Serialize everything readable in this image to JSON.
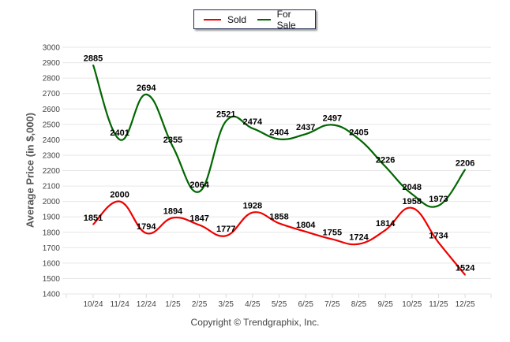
{
  "chart_data": {
    "type": "line",
    "title": "",
    "xlabel": "",
    "ylabel": "Average Price (in $,000)",
    "ylim": [
      1400,
      3000
    ],
    "yticks": [
      3000,
      2900,
      2800,
      2700,
      2600,
      2500,
      2400,
      2300,
      2200,
      2100,
      2000,
      1900,
      1800,
      1700,
      1600,
      1500,
      1400
    ],
    "grid": true,
    "legend_position": "top-center",
    "categories": [
      "10/24",
      "11/24",
      "12/24",
      "1/25",
      "2/25",
      "3/25",
      "4/25",
      "5/25",
      "6/25",
      "7/25",
      "8/25",
      "9/25",
      "10/25",
      "11/25",
      "12/25"
    ],
    "series": [
      {
        "name": "Sold",
        "color": "#ee0000",
        "values": [
          1851,
          2000,
          1794,
          1894,
          1847,
          1777,
          1928,
          1858,
          1804,
          1755,
          1724,
          1814,
          1958,
          1734,
          1524
        ]
      },
      {
        "name": "For Sale",
        "color": "#006600",
        "values": [
          2885,
          2401,
          2694,
          2355,
          2064,
          2521,
          2474,
          2404,
          2437,
          2497,
          2405,
          2226,
          2048,
          1973,
          2206
        ]
      }
    ],
    "footer": "Copyright © Trendgraphix, Inc."
  }
}
